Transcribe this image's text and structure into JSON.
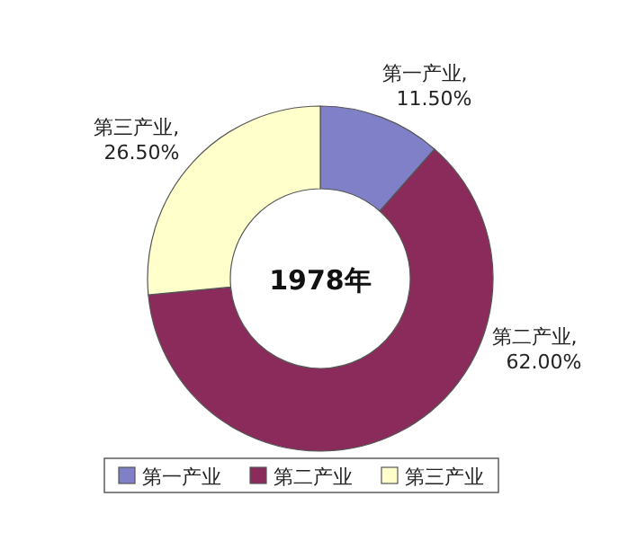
{
  "chart_data": {
    "type": "donut",
    "title": "1978年",
    "categories": [
      "第一产业",
      "第二产业",
      "第三产业"
    ],
    "values": [
      11.5,
      62.0,
      26.5
    ],
    "value_labels": [
      "第一产业, 11.50%",
      "第二产业, 62.00%",
      "第三产业, 26.50%"
    ],
    "colors": [
      "#8080c8",
      "#8b2b5c",
      "#ffffcc"
    ],
    "legend": "bottom"
  }
}
